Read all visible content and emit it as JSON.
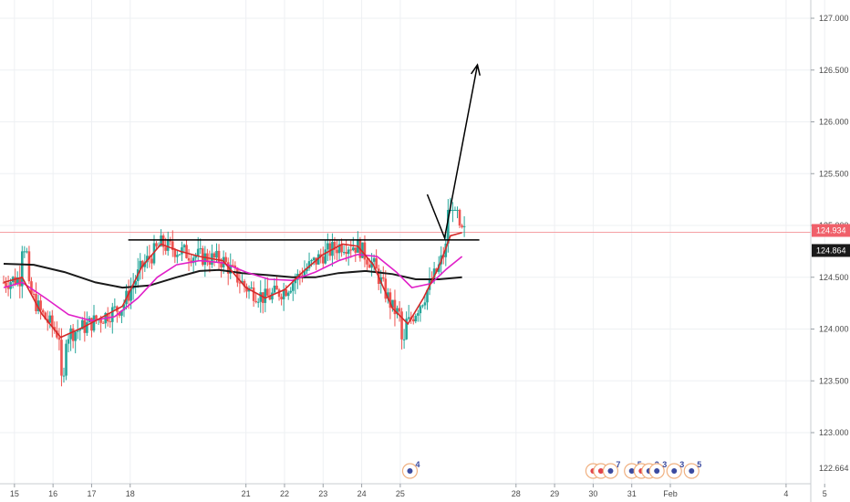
{
  "chart_data": {
    "type": "candlestick",
    "symbol_hint": "",
    "y_axis": {
      "position": "right",
      "ylim": [
        122.59,
        127.17
      ],
      "ticks": [
        123.0,
        123.5,
        124.0,
        124.5,
        125.0,
        125.5,
        126.0,
        126.5,
        127.0
      ],
      "tick_labels": [
        "123.000",
        "123.500",
        "124.000",
        "124.500",
        "125.000",
        "125.500",
        "126.000",
        "126.500",
        "127.000"
      ]
    },
    "x_axis": {
      "day_range": [
        14.72,
        40.1
      ],
      "ticks": [
        {
          "day": 15,
          "label": "15"
        },
        {
          "day": 16,
          "label": "16"
        },
        {
          "day": 17,
          "label": "17"
        },
        {
          "day": 18,
          "label": "18"
        },
        {
          "day": 21,
          "label": "21"
        },
        {
          "day": 22,
          "label": "22"
        },
        {
          "day": 23,
          "label": "23"
        },
        {
          "day": 24,
          "label": "24"
        },
        {
          "day": 25,
          "label": "25"
        },
        {
          "day": 28,
          "label": "28"
        },
        {
          "day": 29,
          "label": "29"
        },
        {
          "day": 30,
          "label": "30"
        },
        {
          "day": 31,
          "label": "31"
        },
        {
          "day": 32,
          "label": "Feb"
        },
        {
          "day": 35,
          "label": "4"
        },
        {
          "day": 36,
          "label": "5"
        }
      ]
    },
    "grid": true,
    "price_markers": [
      {
        "value": 124.934,
        "label": "124.934",
        "color": "#f0606a"
      },
      {
        "value": 124.864,
        "label": "124.864",
        "color": "#1a1a1a"
      }
    ],
    "price_line": {
      "value": 124.934,
      "color": "#f5a0a4"
    },
    "moving_averages": [
      {
        "color": "#1a1a1a",
        "points": [
          [
            14.72,
            124.63
          ],
          [
            15.5,
            124.62
          ],
          [
            16.3,
            124.55
          ],
          [
            17.1,
            124.45
          ],
          [
            17.8,
            124.4
          ],
          [
            18.5,
            124.42
          ],
          [
            19.2,
            124.5
          ],
          [
            19.8,
            124.56
          ],
          [
            20.3,
            124.57
          ],
          [
            20.9,
            124.54
          ],
          [
            21.6,
            124.52
          ],
          [
            22.2,
            124.5
          ],
          [
            22.8,
            124.5
          ],
          [
            23.4,
            124.54
          ],
          [
            24.1,
            124.56
          ],
          [
            24.8,
            124.53
          ],
          [
            25.4,
            124.48
          ],
          [
            26.0,
            124.48
          ],
          [
            26.6,
            124.5
          ]
        ]
      },
      {
        "color": "#e020c8",
        "points": [
          [
            14.72,
            124.4
          ],
          [
            15.2,
            124.45
          ],
          [
            15.8,
            124.3
          ],
          [
            16.4,
            124.14
          ],
          [
            17.0,
            124.08
          ],
          [
            17.6,
            124.12
          ],
          [
            18.2,
            124.3
          ],
          [
            18.7,
            124.5
          ],
          [
            19.2,
            124.62
          ],
          [
            19.8,
            124.66
          ],
          [
            20.4,
            124.64
          ],
          [
            21.0,
            124.55
          ],
          [
            21.6,
            124.48
          ],
          [
            22.2,
            124.47
          ],
          [
            22.8,
            124.55
          ],
          [
            23.4,
            124.66
          ],
          [
            23.9,
            124.72
          ],
          [
            24.4,
            124.7
          ],
          [
            24.9,
            124.55
          ],
          [
            25.3,
            124.4
          ],
          [
            25.8,
            124.44
          ],
          [
            26.2,
            124.58
          ],
          [
            26.6,
            124.7
          ]
        ]
      },
      {
        "color": "#d42a2a",
        "points": [
          [
            14.72,
            124.45
          ],
          [
            15.2,
            124.5
          ],
          [
            15.7,
            124.15
          ],
          [
            16.2,
            123.92
          ],
          [
            16.8,
            124.02
          ],
          [
            17.3,
            124.12
          ],
          [
            17.8,
            124.22
          ],
          [
            18.3,
            124.6
          ],
          [
            18.8,
            124.82
          ],
          [
            19.3,
            124.75
          ],
          [
            19.8,
            124.7
          ],
          [
            20.4,
            124.66
          ],
          [
            21.0,
            124.4
          ],
          [
            21.5,
            124.3
          ],
          [
            22.0,
            124.38
          ],
          [
            22.5,
            124.56
          ],
          [
            23.0,
            124.72
          ],
          [
            23.5,
            124.82
          ],
          [
            23.9,
            124.8
          ],
          [
            24.3,
            124.62
          ],
          [
            24.8,
            124.2
          ],
          [
            25.2,
            124.05
          ],
          [
            25.6,
            124.3
          ],
          [
            26.0,
            124.6
          ],
          [
            26.3,
            124.9
          ],
          [
            26.6,
            124.93
          ]
        ]
      }
    ],
    "candles": [],
    "annotations": {
      "horizontal_line": {
        "value": 124.86,
        "from_day": 17.95,
        "to_day": 27.05,
        "color": "#000000"
      },
      "projection_arrow": {
        "points": [
          [
            25.7,
            125.3
          ],
          [
            26.15,
            124.88
          ],
          [
            27.0,
            126.55
          ]
        ],
        "color": "#000000"
      }
    },
    "event_badges": [
      {
        "day": 25.25,
        "count": "4"
      },
      {
        "day": 30.0,
        "count": ""
      },
      {
        "day": 30.2,
        "count": ""
      },
      {
        "day": 30.45,
        "count": "7"
      },
      {
        "day": 31.0,
        "count": "5"
      },
      {
        "day": 31.25,
        "count": ""
      },
      {
        "day": 31.45,
        "count": "2"
      },
      {
        "day": 31.65,
        "count": "3"
      },
      {
        "day": 32.1,
        "count": "3"
      },
      {
        "day": 32.55,
        "count": "5"
      }
    ]
  }
}
